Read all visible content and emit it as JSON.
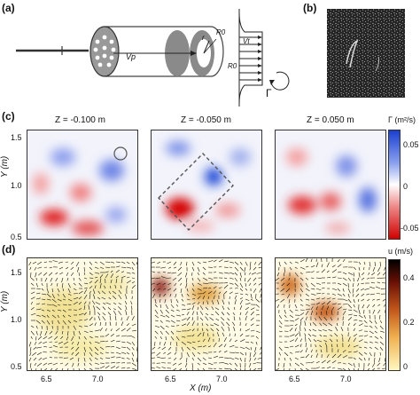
{
  "panels": {
    "a": "(a)",
    "b": "(b)",
    "c": "(c)",
    "d": "(d)"
  },
  "schematic": {
    "vp_label": "Vp",
    "r_label": "r",
    "r0_label": "R0",
    "vt_label": "Vt",
    "r0_profile_label": "R0",
    "circulation_label": "Γ"
  },
  "row_c": {
    "z_labels": [
      "Z = -0.100 m",
      "Z = -0.050 m",
      "Z = 0.050 m"
    ],
    "yaxis_label": "Y (m)",
    "yticks": [
      "1.5",
      "1.0",
      "0.5"
    ],
    "colorbar_title": "Γ (m²/s)",
    "colorbar_ticks": [
      "0.05",
      "0",
      "-0.05"
    ],
    "colors": {
      "high": "#1a3fd0",
      "mid": "#ffffff",
      "low": "#d00000"
    }
  },
  "row_d": {
    "yaxis_label": "Y (m)",
    "yticks": [
      "1.5",
      "1.0",
      "0.5"
    ],
    "xticks": [
      "6.5",
      "7.0"
    ],
    "xaxis_label": "X (m)",
    "colorbar_title": "u (m/s)",
    "colorbar_ticks": [
      "0.4",
      "0.2",
      "0"
    ],
    "colors": {
      "high": "#000000",
      "mid": "#c2561a",
      "low": "#fff8c0"
    }
  }
}
